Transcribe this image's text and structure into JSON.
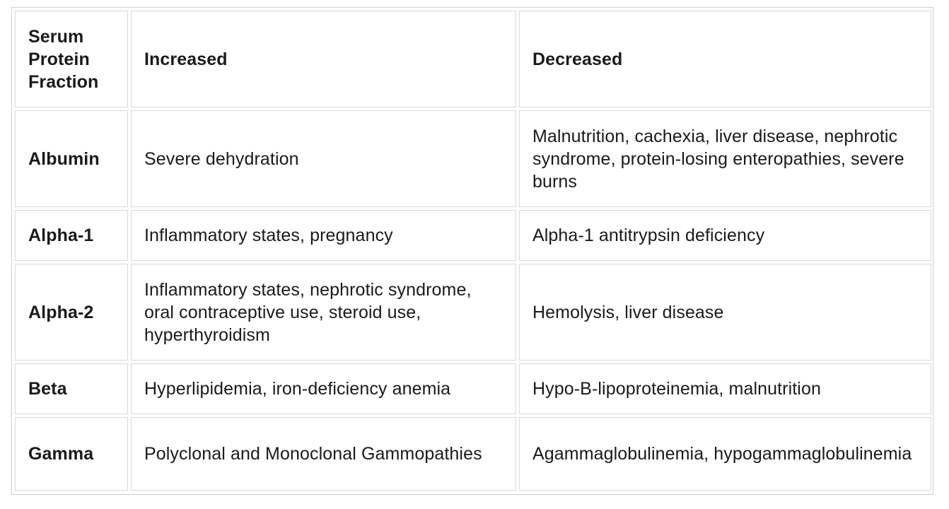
{
  "table": {
    "headers": {
      "fraction": "Serum Protein Fraction",
      "increased": "Increased",
      "decreased": "Decreased"
    },
    "rows": [
      {
        "fraction": "Albumin",
        "increased": "Severe dehydration",
        "decreased": "Malnutrition, cachexia, liver disease, nephrotic syndrome, protein-losing enteropathies, severe burns"
      },
      {
        "fraction": "Alpha-1",
        "increased": "Inflammatory states, pregnancy",
        "decreased": "Alpha-1 antitrypsin deficiency"
      },
      {
        "fraction": "Alpha-2",
        "increased": "Inflammatory states, nephrotic syndrome, oral contraceptive use, steroid use, hyperthyroidism",
        "decreased": "Hemolysis, liver disease"
      },
      {
        "fraction": "Beta",
        "increased": "Hyperlipidemia, iron-deficiency anemia",
        "decreased": "Hypo-B-lipoproteinemia, malnutrition"
      },
      {
        "fraction": "Gamma",
        "increased": "Polyclonal and Monoclonal Gammopathies",
        "decreased": "Agammaglobulinemia, hypogammaglobulinemia"
      }
    ]
  }
}
